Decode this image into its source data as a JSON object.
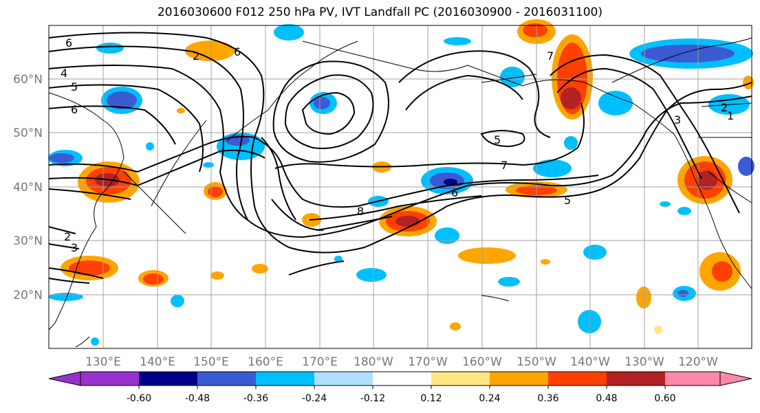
{
  "title": "2016030600 F012 250 hPa PV, IVT Landfall PC (2016030900 - 2016031100)",
  "lat_labels": [
    "60°N",
    "50°N",
    "40°N",
    "30°N",
    "20°N"
  ],
  "lon_labels": [
    "130°E",
    "140°E",
    "150°E",
    "160°E",
    "170°E",
    "180°W",
    "170°W",
    "160°W",
    "150°W",
    "140°W",
    "130°W",
    "120°W"
  ],
  "contour_labels": [
    "6",
    "4",
    "5",
    "6",
    "2",
    "3",
    "2",
    "6",
    "7",
    "5",
    "7",
    "8",
    "6",
    "5",
    "2",
    "1",
    "3"
  ],
  "colorbar": {
    "ticks": [
      "-0.60",
      "-0.48",
      "-0.36",
      "-0.24",
      "-0.12",
      "0.12",
      "0.24",
      "0.36",
      "0.48",
      "0.60"
    ],
    "colors": [
      "#9932cc",
      "#00008b",
      "#3c5ad2",
      "#00bfff",
      "#b0e0ff",
      "#ffffff",
      "#ffe680",
      "#ffa500",
      "#ff4000",
      "#b22222",
      "#ff88aa"
    ]
  },
  "colors": {
    "contour": "#000000",
    "grid": "#a0a0a0",
    "coast": "#000000"
  }
}
